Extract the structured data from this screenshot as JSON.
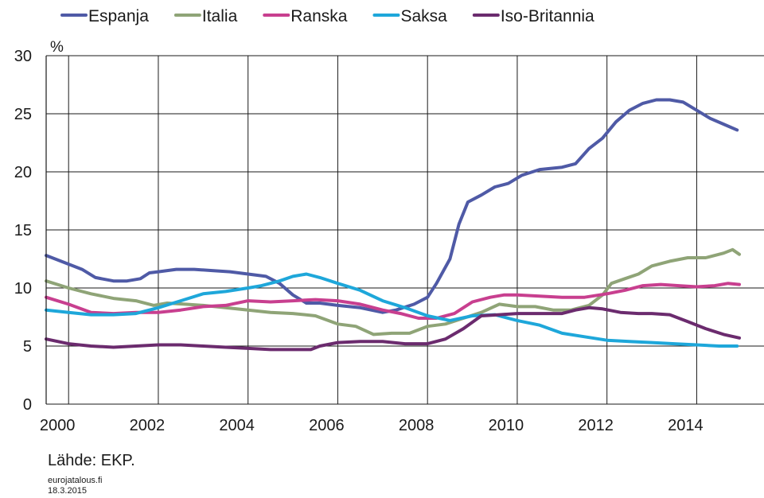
{
  "chart_data": {
    "type": "line",
    "title": "",
    "ylabel": "%",
    "xlabel": "",
    "ylim": [
      0,
      30
    ],
    "xlim": [
      1999.5,
      2015.5
    ],
    "y_ticks": [
      "0",
      "5",
      "10",
      "15",
      "20",
      "25",
      "30"
    ],
    "x_ticks": [
      "2000",
      "2002",
      "2004",
      "2006",
      "2008",
      "2010",
      "2012",
      "2014"
    ],
    "grid": true,
    "legend_position": "top",
    "series": [
      {
        "name": "Espanja",
        "color": "#4f5aa6",
        "points": [
          [
            1999.5,
            12.8
          ],
          [
            1999.9,
            12.2
          ],
          [
            2000.3,
            11.6
          ],
          [
            2000.6,
            10.9
          ],
          [
            2001.0,
            10.6
          ],
          [
            2001.3,
            10.6
          ],
          [
            2001.6,
            10.8
          ],
          [
            2001.8,
            11.3
          ],
          [
            2002.0,
            11.4
          ],
          [
            2002.4,
            11.6
          ],
          [
            2002.8,
            11.6
          ],
          [
            2003.2,
            11.5
          ],
          [
            2003.6,
            11.4
          ],
          [
            2004.0,
            11.2
          ],
          [
            2004.4,
            11.0
          ],
          [
            2004.7,
            10.4
          ],
          [
            2005.0,
            9.4
          ],
          [
            2005.3,
            8.7
          ],
          [
            2005.6,
            8.7
          ],
          [
            2006.0,
            8.5
          ],
          [
            2006.5,
            8.3
          ],
          [
            2007.0,
            7.9
          ],
          [
            2007.3,
            8.1
          ],
          [
            2007.7,
            8.6
          ],
          [
            2008.0,
            9.2
          ],
          [
            2008.2,
            10.4
          ],
          [
            2008.5,
            12.5
          ],
          [
            2008.7,
            15.5
          ],
          [
            2008.9,
            17.4
          ],
          [
            2009.2,
            18.0
          ],
          [
            2009.5,
            18.7
          ],
          [
            2009.8,
            19.0
          ],
          [
            2010.1,
            19.7
          ],
          [
            2010.5,
            20.2
          ],
          [
            2011.0,
            20.4
          ],
          [
            2011.3,
            20.7
          ],
          [
            2011.6,
            22.0
          ],
          [
            2011.9,
            22.9
          ],
          [
            2012.2,
            24.3
          ],
          [
            2012.5,
            25.3
          ],
          [
            2012.8,
            25.9
          ],
          [
            2013.1,
            26.2
          ],
          [
            2013.4,
            26.2
          ],
          [
            2013.7,
            26.0
          ],
          [
            2014.0,
            25.3
          ],
          [
            2014.3,
            24.6
          ],
          [
            2014.6,
            24.1
          ],
          [
            2014.9,
            23.6
          ]
        ]
      },
      {
        "name": "Italia",
        "color": "#8fa477",
        "points": [
          [
            1999.5,
            10.6
          ],
          [
            2000.0,
            10.0
          ],
          [
            2000.5,
            9.5
          ],
          [
            2001.0,
            9.1
          ],
          [
            2001.5,
            8.9
          ],
          [
            2001.9,
            8.5
          ],
          [
            2002.2,
            8.7
          ],
          [
            2002.6,
            8.6
          ],
          [
            2003.0,
            8.5
          ],
          [
            2003.5,
            8.3
          ],
          [
            2004.0,
            8.1
          ],
          [
            2004.5,
            7.9
          ],
          [
            2005.0,
            7.8
          ],
          [
            2005.5,
            7.6
          ],
          [
            2006.0,
            6.9
          ],
          [
            2006.4,
            6.7
          ],
          [
            2006.8,
            6.0
          ],
          [
            2007.2,
            6.1
          ],
          [
            2007.6,
            6.1
          ],
          [
            2008.0,
            6.7
          ],
          [
            2008.4,
            6.9
          ],
          [
            2008.8,
            7.4
          ],
          [
            2009.2,
            7.9
          ],
          [
            2009.6,
            8.6
          ],
          [
            2010.0,
            8.4
          ],
          [
            2010.4,
            8.4
          ],
          [
            2010.8,
            8.1
          ],
          [
            2011.2,
            8.1
          ],
          [
            2011.6,
            8.5
          ],
          [
            2011.9,
            9.4
          ],
          [
            2012.1,
            10.4
          ],
          [
            2012.4,
            10.8
          ],
          [
            2012.7,
            11.2
          ],
          [
            2013.0,
            11.9
          ],
          [
            2013.4,
            12.3
          ],
          [
            2013.8,
            12.6
          ],
          [
            2014.2,
            12.6
          ],
          [
            2014.6,
            13.0
          ],
          [
            2014.8,
            13.3
          ],
          [
            2014.95,
            12.9
          ]
        ]
      },
      {
        "name": "Ranska",
        "color": "#c83f8f",
        "points": [
          [
            1999.5,
            9.2
          ],
          [
            2000.0,
            8.6
          ],
          [
            2000.5,
            7.9
          ],
          [
            2001.0,
            7.8
          ],
          [
            2001.5,
            7.9
          ],
          [
            2002.0,
            7.9
          ],
          [
            2002.5,
            8.1
          ],
          [
            2003.0,
            8.4
          ],
          [
            2003.5,
            8.5
          ],
          [
            2004.0,
            8.9
          ],
          [
            2004.5,
            8.8
          ],
          [
            2005.0,
            8.9
          ],
          [
            2005.5,
            9.0
          ],
          [
            2006.0,
            8.9
          ],
          [
            2006.5,
            8.6
          ],
          [
            2007.0,
            8.1
          ],
          [
            2007.4,
            7.8
          ],
          [
            2007.8,
            7.4
          ],
          [
            2008.2,
            7.4
          ],
          [
            2008.6,
            7.8
          ],
          [
            2009.0,
            8.8
          ],
          [
            2009.4,
            9.2
          ],
          [
            2009.7,
            9.4
          ],
          [
            2010.0,
            9.4
          ],
          [
            2010.5,
            9.3
          ],
          [
            2011.0,
            9.2
          ],
          [
            2011.5,
            9.2
          ],
          [
            2012.0,
            9.5
          ],
          [
            2012.4,
            9.8
          ],
          [
            2012.8,
            10.2
          ],
          [
            2013.2,
            10.3
          ],
          [
            2013.6,
            10.2
          ],
          [
            2014.0,
            10.1
          ],
          [
            2014.4,
            10.2
          ],
          [
            2014.7,
            10.4
          ],
          [
            2014.95,
            10.3
          ]
        ]
      },
      {
        "name": "Saksa",
        "color": "#1ea7da",
        "points": [
          [
            1999.5,
            8.1
          ],
          [
            2000.0,
            7.9
          ],
          [
            2000.5,
            7.7
          ],
          [
            2001.0,
            7.7
          ],
          [
            2001.5,
            7.8
          ],
          [
            2002.0,
            8.3
          ],
          [
            2002.5,
            8.9
          ],
          [
            2003.0,
            9.5
          ],
          [
            2003.5,
            9.7
          ],
          [
            2004.0,
            10.0
          ],
          [
            2004.3,
            10.2
          ],
          [
            2004.7,
            10.6
          ],
          [
            2005.0,
            11.0
          ],
          [
            2005.3,
            11.2
          ],
          [
            2005.6,
            10.9
          ],
          [
            2006.0,
            10.4
          ],
          [
            2006.5,
            9.8
          ],
          [
            2007.0,
            8.9
          ],
          [
            2007.5,
            8.3
          ],
          [
            2008.0,
            7.6
          ],
          [
            2008.5,
            7.2
          ],
          [
            2009.0,
            7.6
          ],
          [
            2009.5,
            7.7
          ],
          [
            2010.0,
            7.2
          ],
          [
            2010.5,
            6.8
          ],
          [
            2011.0,
            6.1
          ],
          [
            2011.5,
            5.8
          ],
          [
            2012.0,
            5.5
          ],
          [
            2012.5,
            5.4
          ],
          [
            2013.0,
            5.3
          ],
          [
            2013.5,
            5.2
          ],
          [
            2014.0,
            5.1
          ],
          [
            2014.5,
            5.0
          ],
          [
            2014.9,
            5.0
          ]
        ]
      },
      {
        "name": "Iso-Britannia",
        "color": "#6b2b6e",
        "points": [
          [
            1999.5,
            5.6
          ],
          [
            2000.0,
            5.2
          ],
          [
            2000.5,
            5.0
          ],
          [
            2001.0,
            4.9
          ],
          [
            2001.5,
            5.0
          ],
          [
            2002.0,
            5.1
          ],
          [
            2002.5,
            5.1
          ],
          [
            2003.0,
            5.0
          ],
          [
            2003.5,
            4.9
          ],
          [
            2004.0,
            4.8
          ],
          [
            2004.5,
            4.7
          ],
          [
            2005.0,
            4.7
          ],
          [
            2005.4,
            4.7
          ],
          [
            2005.6,
            5.0
          ],
          [
            2006.0,
            5.3
          ],
          [
            2006.5,
            5.4
          ],
          [
            2007.0,
            5.4
          ],
          [
            2007.5,
            5.2
          ],
          [
            2008.0,
            5.2
          ],
          [
            2008.4,
            5.6
          ],
          [
            2008.8,
            6.5
          ],
          [
            2009.2,
            7.6
          ],
          [
            2009.6,
            7.7
          ],
          [
            2010.0,
            7.8
          ],
          [
            2010.5,
            7.8
          ],
          [
            2011.0,
            7.8
          ],
          [
            2011.3,
            8.1
          ],
          [
            2011.6,
            8.3
          ],
          [
            2011.9,
            8.2
          ],
          [
            2012.3,
            7.9
          ],
          [
            2012.7,
            7.8
          ],
          [
            2013.0,
            7.8
          ],
          [
            2013.4,
            7.7
          ],
          [
            2013.8,
            7.1
          ],
          [
            2014.2,
            6.5
          ],
          [
            2014.6,
            6.0
          ],
          [
            2014.95,
            5.7
          ]
        ]
      }
    ]
  },
  "footer": {
    "source": "Lähde: EKP.",
    "site": "eurojatalous.fi",
    "date": "18.3.2015"
  }
}
